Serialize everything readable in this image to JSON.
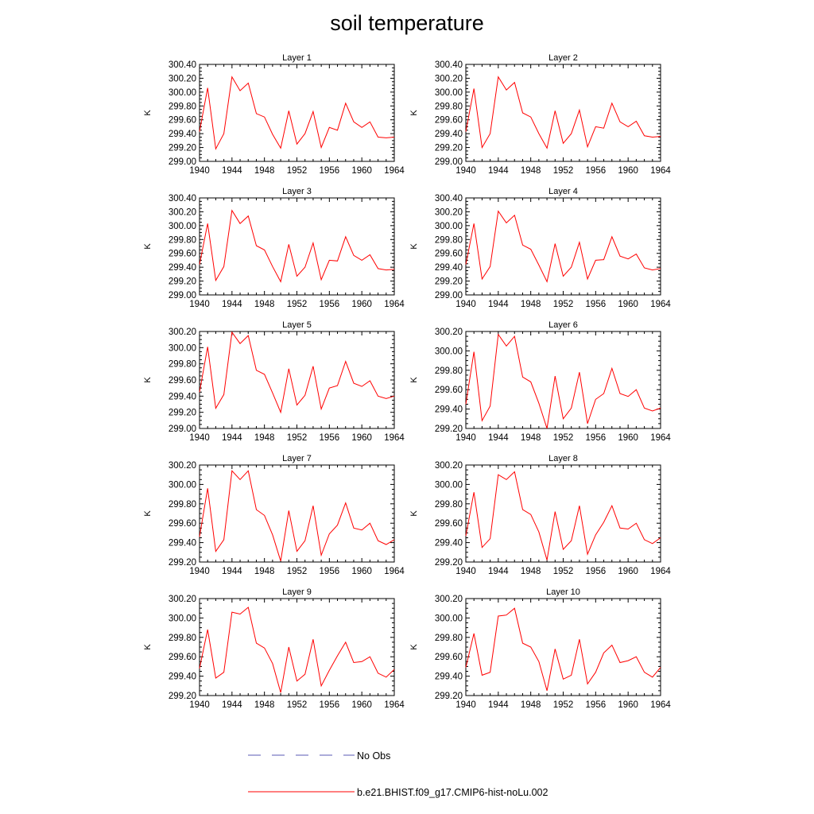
{
  "title": "soil temperature",
  "legend": {
    "obs_label": "No Obs",
    "obs_color": "#5a5ab4",
    "model_label": "b.e21.BHIST.f09_g17.CMIP6-hist-noLu.002",
    "model_color": "#ff0000"
  },
  "chart_data": [
    {
      "type": "line",
      "title": "Layer 1",
      "ylabel": "K",
      "xlim": [
        1940,
        1964
      ],
      "ylim": [
        299.0,
        300.4
      ],
      "xticks": [
        "1940",
        "1944",
        "1948",
        "1952",
        "1956",
        "1960",
        "1964"
      ],
      "yticks": [
        "299.00",
        "299.20",
        "299.40",
        "299.60",
        "299.80",
        "300.00",
        "300.20",
        "300.40"
      ],
      "series": [
        {
          "name": "b.e21.BHIST.f09_g17.CMIP6-hist-noLu.002",
          "x": [
            1940,
            1941,
            1942,
            1943,
            1944,
            1945,
            1946,
            1947,
            1948,
            1949,
            1950,
            1951,
            1952,
            1953,
            1954,
            1955,
            1956,
            1957,
            1958,
            1959,
            1960,
            1961,
            1962,
            1963,
            1964
          ],
          "y": [
            299.43,
            300.06,
            299.18,
            299.4,
            300.22,
            300.02,
            300.13,
            299.69,
            299.64,
            299.39,
            299.19,
            299.73,
            299.25,
            299.4,
            299.72,
            299.2,
            299.49,
            299.45,
            299.84,
            299.57,
            299.49,
            299.57,
            299.35,
            299.34,
            299.35
          ]
        }
      ]
    },
    {
      "type": "line",
      "title": "Layer 2",
      "ylabel": "K",
      "xlim": [
        1940,
        1964
      ],
      "ylim": [
        299.0,
        300.4
      ],
      "xticks": [
        "1940",
        "1944",
        "1948",
        "1952",
        "1956",
        "1960",
        "1964"
      ],
      "yticks": [
        "299.00",
        "299.20",
        "299.40",
        "299.60",
        "299.80",
        "300.00",
        "300.20",
        "300.40"
      ],
      "series": [
        {
          "name": "b.e21.BHIST.f09_g17.CMIP6-hist-noLu.002",
          "x": [
            1940,
            1941,
            1942,
            1943,
            1944,
            1945,
            1946,
            1947,
            1948,
            1949,
            1950,
            1951,
            1952,
            1953,
            1954,
            1955,
            1956,
            1957,
            1958,
            1959,
            1960,
            1961,
            1962,
            1963,
            1964
          ],
          "y": [
            299.43,
            300.05,
            299.2,
            299.4,
            300.22,
            300.03,
            300.14,
            299.7,
            299.64,
            299.4,
            299.19,
            299.73,
            299.26,
            299.4,
            299.74,
            299.21,
            299.5,
            299.48,
            299.84,
            299.57,
            299.5,
            299.58,
            299.37,
            299.35,
            299.36
          ]
        }
      ]
    },
    {
      "type": "line",
      "title": "Layer 3",
      "ylabel": "K",
      "xlim": [
        1940,
        1964
      ],
      "ylim": [
        299.0,
        300.4
      ],
      "xticks": [
        "1940",
        "1944",
        "1948",
        "1952",
        "1956",
        "1960",
        "1964"
      ],
      "yticks": [
        "299.00",
        "299.20",
        "299.40",
        "299.60",
        "299.80",
        "300.00",
        "300.20",
        "300.40"
      ],
      "series": [
        {
          "name": "b.e21.BHIST.f09_g17.CMIP6-hist-noLu.002",
          "x": [
            1940,
            1941,
            1942,
            1943,
            1944,
            1945,
            1946,
            1947,
            1948,
            1949,
            1950,
            1951,
            1952,
            1953,
            1954,
            1955,
            1956,
            1957,
            1958,
            1959,
            1960,
            1961,
            1962,
            1963,
            1964
          ],
          "y": [
            299.44,
            300.03,
            299.21,
            299.41,
            300.22,
            300.03,
            300.14,
            299.71,
            299.65,
            299.41,
            299.19,
            299.73,
            299.27,
            299.4,
            299.75,
            299.22,
            299.5,
            299.49,
            299.84,
            299.57,
            299.5,
            299.58,
            299.38,
            299.36,
            299.37
          ]
        }
      ]
    },
    {
      "type": "line",
      "title": "Layer 4",
      "ylabel": "K",
      "xlim": [
        1940,
        1964
      ],
      "ylim": [
        299.0,
        300.4
      ],
      "xticks": [
        "1940",
        "1944",
        "1948",
        "1952",
        "1956",
        "1960",
        "1964"
      ],
      "yticks": [
        "299.00",
        "299.20",
        "299.40",
        "299.60",
        "299.80",
        "300.00",
        "300.20",
        "300.40"
      ],
      "series": [
        {
          "name": "b.e21.BHIST.f09_g17.CMIP6-hist-noLu.002",
          "x": [
            1940,
            1941,
            1942,
            1943,
            1944,
            1945,
            1946,
            1947,
            1948,
            1949,
            1950,
            1951,
            1952,
            1953,
            1954,
            1955,
            1956,
            1957,
            1958,
            1959,
            1960,
            1961,
            1962,
            1963,
            1964
          ],
          "y": [
            299.44,
            300.03,
            299.23,
            299.41,
            300.21,
            300.04,
            300.15,
            299.72,
            299.66,
            299.43,
            299.19,
            299.74,
            299.27,
            299.4,
            299.76,
            299.23,
            299.5,
            299.51,
            299.84,
            299.56,
            299.52,
            299.59,
            299.39,
            299.36,
            299.38
          ]
        }
      ]
    },
    {
      "type": "line",
      "title": "Layer 5",
      "ylabel": "K",
      "xlim": [
        1940,
        1964
      ],
      "ylim": [
        299.0,
        300.2
      ],
      "xticks": [
        "1940",
        "1944",
        "1948",
        "1952",
        "1956",
        "1960",
        "1964"
      ],
      "yticks": [
        "299.00",
        "299.20",
        "299.40",
        "299.60",
        "299.80",
        "300.00",
        "300.20"
      ],
      "series": [
        {
          "name": "b.e21.BHIST.f09_g17.CMIP6-hist-noLu.002",
          "x": [
            1940,
            1941,
            1942,
            1943,
            1944,
            1945,
            1946,
            1947,
            1948,
            1949,
            1950,
            1951,
            1952,
            1953,
            1954,
            1955,
            1956,
            1957,
            1958,
            1959,
            1960,
            1961,
            1962,
            1963,
            1964
          ],
          "y": [
            299.45,
            300.01,
            299.25,
            299.42,
            300.19,
            300.05,
            300.15,
            299.72,
            299.67,
            299.44,
            299.2,
            299.74,
            299.29,
            299.41,
            299.77,
            299.24,
            299.5,
            299.53,
            299.83,
            299.56,
            299.52,
            299.59,
            299.4,
            299.37,
            299.4
          ]
        }
      ]
    },
    {
      "type": "line",
      "title": "Layer 6",
      "ylabel": "K",
      "xlim": [
        1940,
        1964
      ],
      "ylim": [
        299.2,
        300.2
      ],
      "xticks": [
        "1940",
        "1944",
        "1948",
        "1952",
        "1956",
        "1960",
        "1964"
      ],
      "yticks": [
        "299.20",
        "299.40",
        "299.60",
        "299.80",
        "300.00",
        "300.20"
      ],
      "series": [
        {
          "name": "b.e21.BHIST.f09_g17.CMIP6-hist-noLu.002",
          "x": [
            1940,
            1941,
            1942,
            1943,
            1944,
            1945,
            1946,
            1947,
            1948,
            1949,
            1950,
            1951,
            1952,
            1953,
            1954,
            1955,
            1956,
            1957,
            1958,
            1959,
            1960,
            1961,
            1962,
            1963,
            1964
          ],
          "y": [
            299.45,
            299.99,
            299.28,
            299.43,
            300.17,
            300.05,
            300.15,
            299.73,
            299.68,
            299.46,
            299.2,
            299.74,
            299.3,
            299.41,
            299.78,
            299.25,
            299.5,
            299.56,
            299.82,
            299.56,
            299.53,
            299.6,
            299.41,
            299.38,
            299.41
          ]
        }
      ]
    },
    {
      "type": "line",
      "title": "Layer 7",
      "ylabel": "K",
      "xlim": [
        1940,
        1964
      ],
      "ylim": [
        299.2,
        300.2
      ],
      "xticks": [
        "1940",
        "1944",
        "1948",
        "1952",
        "1956",
        "1960",
        "1964"
      ],
      "yticks": [
        "299.20",
        "299.40",
        "299.60",
        "299.80",
        "300.00",
        "300.20"
      ],
      "series": [
        {
          "name": "b.e21.BHIST.f09_g17.CMIP6-hist-noLu.002",
          "x": [
            1940,
            1941,
            1942,
            1943,
            1944,
            1945,
            1946,
            1947,
            1948,
            1949,
            1950,
            1951,
            1952,
            1953,
            1954,
            1955,
            1956,
            1957,
            1958,
            1959,
            1960,
            1961,
            1962,
            1963,
            1964
          ],
          "y": [
            299.46,
            299.96,
            299.31,
            299.43,
            300.14,
            300.05,
            300.14,
            299.74,
            299.68,
            299.48,
            299.21,
            299.73,
            299.31,
            299.42,
            299.78,
            299.27,
            299.49,
            299.58,
            299.81,
            299.55,
            299.53,
            299.6,
            299.42,
            299.38,
            299.43
          ]
        }
      ]
    },
    {
      "type": "line",
      "title": "Layer 8",
      "ylabel": "K",
      "xlim": [
        1940,
        1964
      ],
      "ylim": [
        299.2,
        300.2
      ],
      "xticks": [
        "1940",
        "1944",
        "1948",
        "1952",
        "1956",
        "1960",
        "1964"
      ],
      "yticks": [
        "299.20",
        "299.40",
        "299.60",
        "299.80",
        "300.00",
        "300.20"
      ],
      "series": [
        {
          "name": "b.e21.BHIST.f09_g17.CMIP6-hist-noLu.002",
          "x": [
            1940,
            1941,
            1942,
            1943,
            1944,
            1945,
            1946,
            1947,
            1948,
            1949,
            1950,
            1951,
            1952,
            1953,
            1954,
            1955,
            1956,
            1957,
            1958,
            1959,
            1960,
            1961,
            1962,
            1963,
            1964
          ],
          "y": [
            299.47,
            299.92,
            299.35,
            299.44,
            300.1,
            300.05,
            300.13,
            299.74,
            299.69,
            299.51,
            299.22,
            299.72,
            299.33,
            299.42,
            299.78,
            299.28,
            299.48,
            299.61,
            299.78,
            299.55,
            299.54,
            299.6,
            299.43,
            299.39,
            299.45
          ]
        }
      ]
    },
    {
      "type": "line",
      "title": "Layer 9",
      "ylabel": "K",
      "xlim": [
        1940,
        1964
      ],
      "ylim": [
        299.2,
        300.2
      ],
      "xticks": [
        "1940",
        "1944",
        "1948",
        "1952",
        "1956",
        "1960",
        "1964"
      ],
      "yticks": [
        "299.20",
        "299.40",
        "299.60",
        "299.80",
        "300.00",
        "300.20"
      ],
      "series": [
        {
          "name": "b.e21.BHIST.f09_g17.CMIP6-hist-noLu.002",
          "x": [
            1940,
            1941,
            1942,
            1943,
            1944,
            1945,
            1946,
            1947,
            1948,
            1949,
            1950,
            1951,
            1952,
            1953,
            1954,
            1955,
            1956,
            1957,
            1958,
            1959,
            1960,
            1961,
            1962,
            1963,
            1964
          ],
          "y": [
            299.48,
            299.88,
            299.38,
            299.44,
            300.06,
            300.04,
            300.11,
            299.74,
            299.69,
            299.53,
            299.23,
            299.7,
            299.35,
            299.42,
            299.78,
            299.3,
            299.46,
            299.61,
            299.75,
            299.54,
            299.55,
            299.6,
            299.43,
            299.39,
            299.47
          ]
        }
      ]
    },
    {
      "type": "line",
      "title": "Layer 10",
      "ylabel": "K",
      "xlim": [
        1940,
        1964
      ],
      "ylim": [
        299.2,
        300.2
      ],
      "xticks": [
        "1940",
        "1944",
        "1948",
        "1952",
        "1956",
        "1960",
        "1964"
      ],
      "yticks": [
        "299.20",
        "299.40",
        "299.60",
        "299.80",
        "300.00",
        "300.20"
      ],
      "series": [
        {
          "name": "b.e21.BHIST.f09_g17.CMIP6-hist-noLu.002",
          "x": [
            1940,
            1941,
            1942,
            1943,
            1944,
            1945,
            1946,
            1947,
            1948,
            1949,
            1950,
            1951,
            1952,
            1953,
            1954,
            1955,
            1956,
            1957,
            1958,
            1959,
            1960,
            1961,
            1962,
            1963,
            1964
          ],
          "y": [
            299.49,
            299.84,
            299.41,
            299.44,
            300.02,
            300.03,
            300.1,
            299.74,
            299.7,
            299.55,
            299.25,
            299.68,
            299.37,
            299.41,
            299.78,
            299.32,
            299.44,
            299.64,
            299.72,
            299.54,
            299.56,
            299.6,
            299.44,
            299.39,
            299.49
          ]
        }
      ]
    }
  ]
}
